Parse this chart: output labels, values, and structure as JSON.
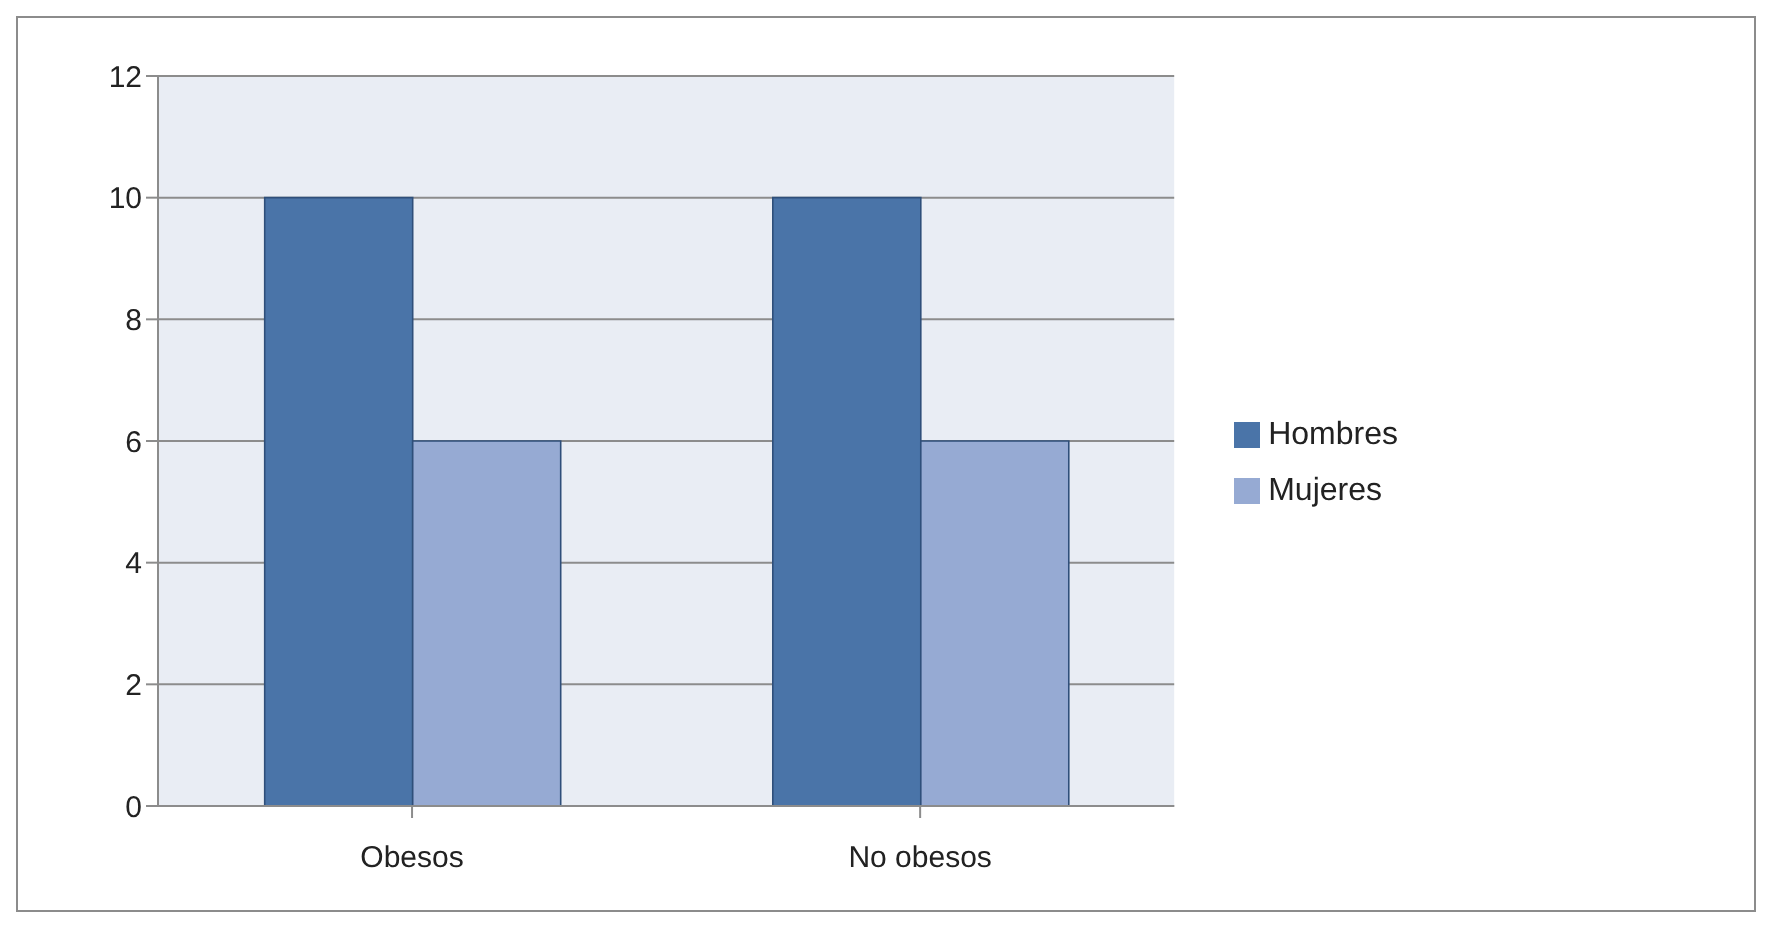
{
  "chart_data": {
    "type": "bar",
    "categories": [
      "Obesos",
      "No obesos"
    ],
    "series": [
      {
        "name": "Hombres",
        "color": "#4a74a8",
        "values": [
          10,
          10
        ]
      },
      {
        "name": "Mujeres",
        "color": "#96aad3",
        "values": [
          6,
          6
        ]
      }
    ],
    "ylim": [
      0,
      12
    ],
    "yticks": [
      0,
      2,
      4,
      6,
      8,
      10,
      12
    ],
    "grid": "y",
    "legend": "right"
  }
}
